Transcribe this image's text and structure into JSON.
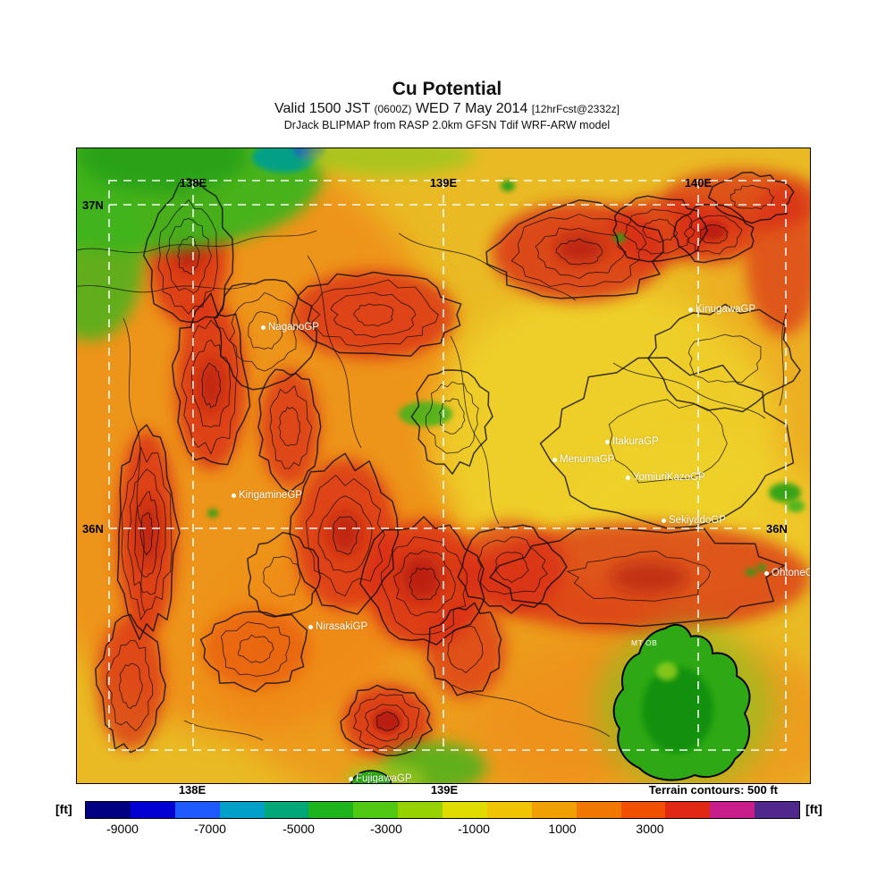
{
  "title": {
    "line1": "Cu Potential",
    "line2_parts": {
      "a": "Valid 1500 JST ",
      "b": "(0600Z)",
      "c": " WED 7 May 2014 ",
      "d": "[12hrFcst@2332z]"
    },
    "line3": "DrJack BLIPMAP from RASP 2.0km GFSN Tdif WRF-ARW model"
  },
  "map": {
    "grid_labels": {
      "top": [
        "138E",
        "139E",
        "140E"
      ],
      "left": [
        "37N",
        "36N"
      ],
      "right": [
        "36N"
      ],
      "bottom": [
        "138E",
        "139E"
      ]
    },
    "sites": [
      {
        "label": "NaganoGP"
      },
      {
        "label": "KinugawaGP"
      },
      {
        "label": "ItakuraGP"
      },
      {
        "label": "MenumaGP"
      },
      {
        "label": "YomiuriKazoGP"
      },
      {
        "label": "KirigamineGP"
      },
      {
        "label": "SekiyadoGP"
      },
      {
        "label": "OhtoneGP"
      },
      {
        "label": "NirasakiGP"
      },
      {
        "label": "FujigawaGP"
      }
    ],
    "annotation": "MT OB"
  },
  "colorbar": {
    "unit": "[ft]",
    "ticks": [
      "-9000",
      "-7000",
      "-5000",
      "-3000",
      "-1000",
      "1000",
      "3000"
    ],
    "colors": [
      "#000082",
      "#0000D2",
      "#1E5AFF",
      "#00A0C8",
      "#00A878",
      "#1EB41E",
      "#50C814",
      "#96D200",
      "#E0DC00",
      "#F0C400",
      "#F0A000",
      "#F07800",
      "#F05000",
      "#E12814",
      "#C81E8C",
      "#50288C"
    ],
    "terrain_note": "Terrain contours: 500 ft"
  }
}
